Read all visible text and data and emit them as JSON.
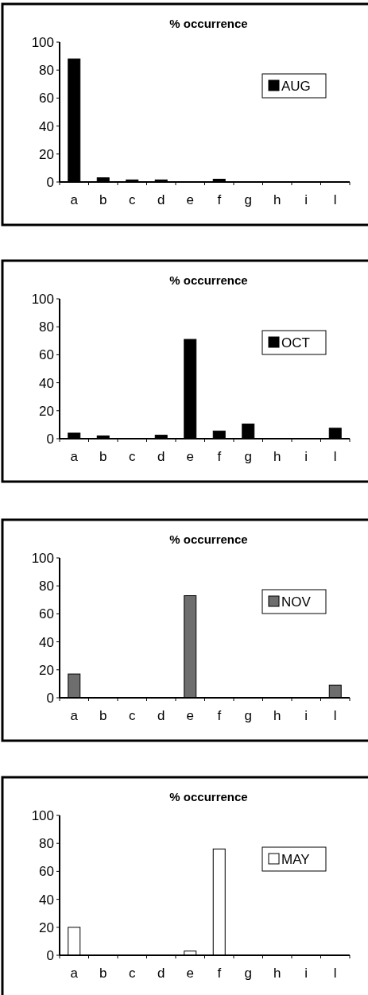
{
  "chart_data": [
    {
      "type": "bar",
      "title": "% occurrence",
      "categories": [
        "a",
        "b",
        "c",
        "d",
        "e",
        "f",
        "g",
        "h",
        "i",
        "l"
      ],
      "series": [
        {
          "name": "AUG",
          "color": "#000000",
          "values": [
            88,
            3,
            1.5,
            1.5,
            0,
            2,
            0,
            0,
            0,
            0
          ]
        }
      ],
      "ylim": [
        0,
        100
      ],
      "yticks": [
        0,
        20,
        40,
        60,
        80,
        100
      ],
      "legend": "right"
    },
    {
      "type": "bar",
      "title": "% occurrence",
      "categories": [
        "a",
        "b",
        "c",
        "d",
        "e",
        "f",
        "g",
        "h",
        "i",
        "l"
      ],
      "series": [
        {
          "name": "OCT",
          "color": "#000000",
          "values": [
            4,
            2,
            0,
            2.5,
            71,
            5.5,
            10.5,
            0,
            0,
            7.5
          ]
        }
      ],
      "ylim": [
        0,
        100
      ],
      "yticks": [
        0,
        20,
        40,
        60,
        80,
        100
      ],
      "legend": "right"
    },
    {
      "type": "bar",
      "title": "% occurrence",
      "categories": [
        "a",
        "b",
        "c",
        "d",
        "e",
        "f",
        "g",
        "h",
        "i",
        "l"
      ],
      "series": [
        {
          "name": "NOV",
          "color": "#6e6e6e",
          "values": [
            17,
            0,
            0,
            0,
            73,
            0,
            0,
            0,
            0,
            9
          ]
        }
      ],
      "ylim": [
        0,
        100
      ],
      "yticks": [
        0,
        20,
        40,
        60,
        80,
        100
      ],
      "legend": "right"
    },
    {
      "type": "bar",
      "title": "% occurrence",
      "categories": [
        "a",
        "b",
        "c",
        "d",
        "e",
        "f",
        "g",
        "h",
        "i",
        "l"
      ],
      "series": [
        {
          "name": "MAY",
          "color": "#ffffff",
          "values": [
            20,
            0,
            0,
            0,
            3,
            76,
            0,
            0,
            0,
            0
          ]
        }
      ],
      "ylim": [
        0,
        100
      ],
      "yticks": [
        0,
        20,
        40,
        60,
        80,
        100
      ],
      "legend": "right"
    }
  ]
}
